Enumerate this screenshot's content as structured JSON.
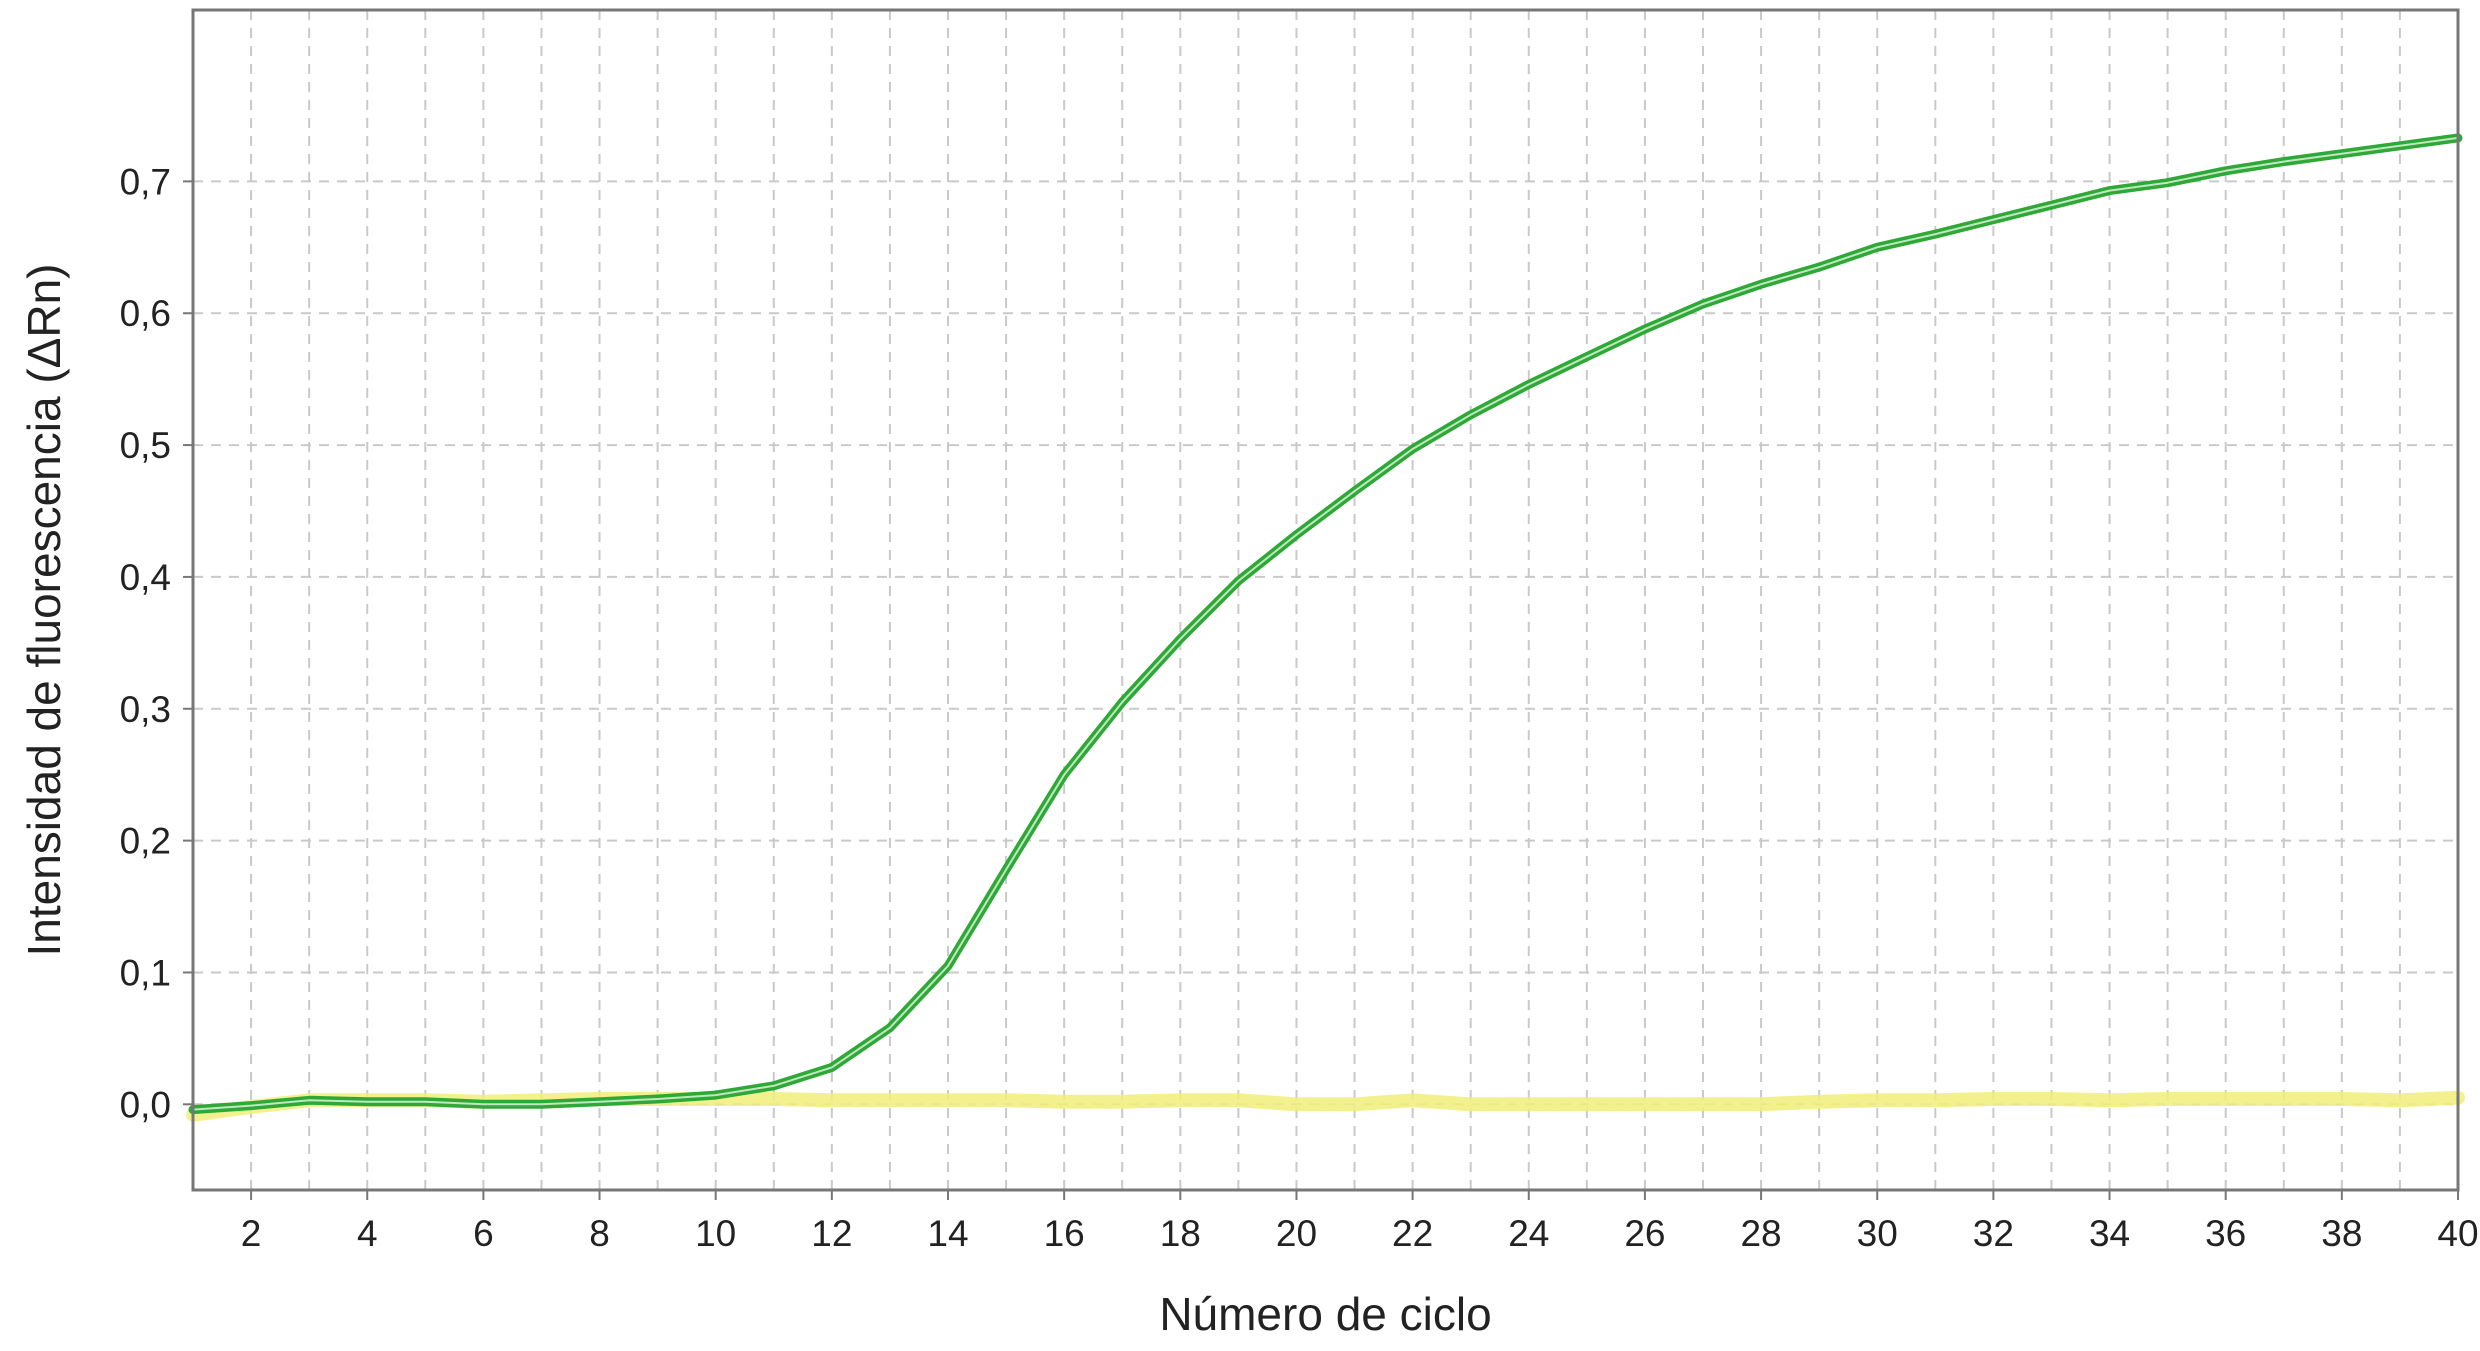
{
  "chart_data": {
    "type": "line",
    "title": "",
    "xlabel": "Número de ciclo",
    "ylabel": "Intensidad de fluorescencia (ΔRn)",
    "xlim": [
      1,
      40
    ],
    "ylim": [
      -0.065,
      0.83
    ],
    "grid": true,
    "x_ticks": [
      2,
      4,
      6,
      8,
      10,
      12,
      14,
      16,
      18,
      20,
      22,
      24,
      26,
      28,
      30,
      32,
      34,
      36,
      38,
      40
    ],
    "x_tick_labels": [
      "2",
      "4",
      "6",
      "8",
      "10",
      "12",
      "14",
      "16",
      "18",
      "20",
      "22",
      "24",
      "26",
      "28",
      "30",
      "32",
      "34",
      "36",
      "38",
      "40"
    ],
    "y_ticks": [
      0.0,
      0.1,
      0.2,
      0.3,
      0.4,
      0.5,
      0.6,
      0.7
    ],
    "y_tick_labels": [
      "0,0",
      "0,1",
      "0,2",
      "0,3",
      "0,4",
      "0,5",
      "0,6",
      "0,7"
    ],
    "x_minor_gridlines": [
      1,
      3,
      5,
      7,
      9,
      11,
      13,
      15,
      17,
      19,
      21,
      23,
      25,
      27,
      29,
      31,
      33,
      35,
      37,
      39
    ],
    "series": [
      {
        "color": "#f1ef7a",
        "x": [
          1,
          2,
          3,
          4,
          5,
          6,
          7,
          8,
          9,
          10,
          11,
          12,
          13,
          14,
          15,
          16,
          17,
          18,
          19,
          20,
          21,
          22,
          23,
          24,
          25,
          26,
          27,
          28,
          29,
          30,
          31,
          32,
          33,
          34,
          35,
          36,
          37,
          38,
          39,
          40
        ],
        "y": [
          -0.008,
          -0.002,
          0.003,
          0.003,
          0.003,
          0.002,
          0.003,
          0.004,
          0.004,
          0.004,
          0.004,
          0.003,
          0.003,
          0.003,
          0.003,
          0.002,
          0.002,
          0.003,
          0.003,
          0.0,
          0.0,
          0.003,
          0.0,
          0.0,
          0.0,
          0.0,
          0.0,
          0.0,
          0.002,
          0.003,
          0.003,
          0.004,
          0.004,
          0.003,
          0.004,
          0.004,
          0.004,
          0.004,
          0.003,
          0.005
        ]
      },
      {
        "color": "#2ea836",
        "x": [
          1,
          2,
          3,
          4,
          5,
          6,
          7,
          8,
          9,
          10,
          11,
          12,
          13,
          14,
          15,
          16,
          17,
          18,
          19,
          20,
          21,
          22,
          23,
          24,
          25,
          26,
          27,
          28,
          29,
          30,
          31,
          32,
          33,
          34,
          35,
          36,
          37,
          38,
          39,
          40
        ],
        "y": [
          -0.004,
          -0.001,
          0.003,
          0.002,
          0.002,
          0.0,
          0.0,
          0.002,
          0.004,
          0.007,
          0.014,
          0.028,
          0.058,
          0.105,
          0.178,
          0.25,
          0.305,
          0.353,
          0.397,
          0.432,
          0.465,
          0.497,
          0.523,
          0.546,
          0.567,
          0.588,
          0.607,
          0.622,
          0.635,
          0.65,
          0.66,
          0.671,
          0.682,
          0.693,
          0.699,
          0.708,
          0.715,
          0.721,
          0.727,
          0.733
        ]
      }
    ]
  }
}
